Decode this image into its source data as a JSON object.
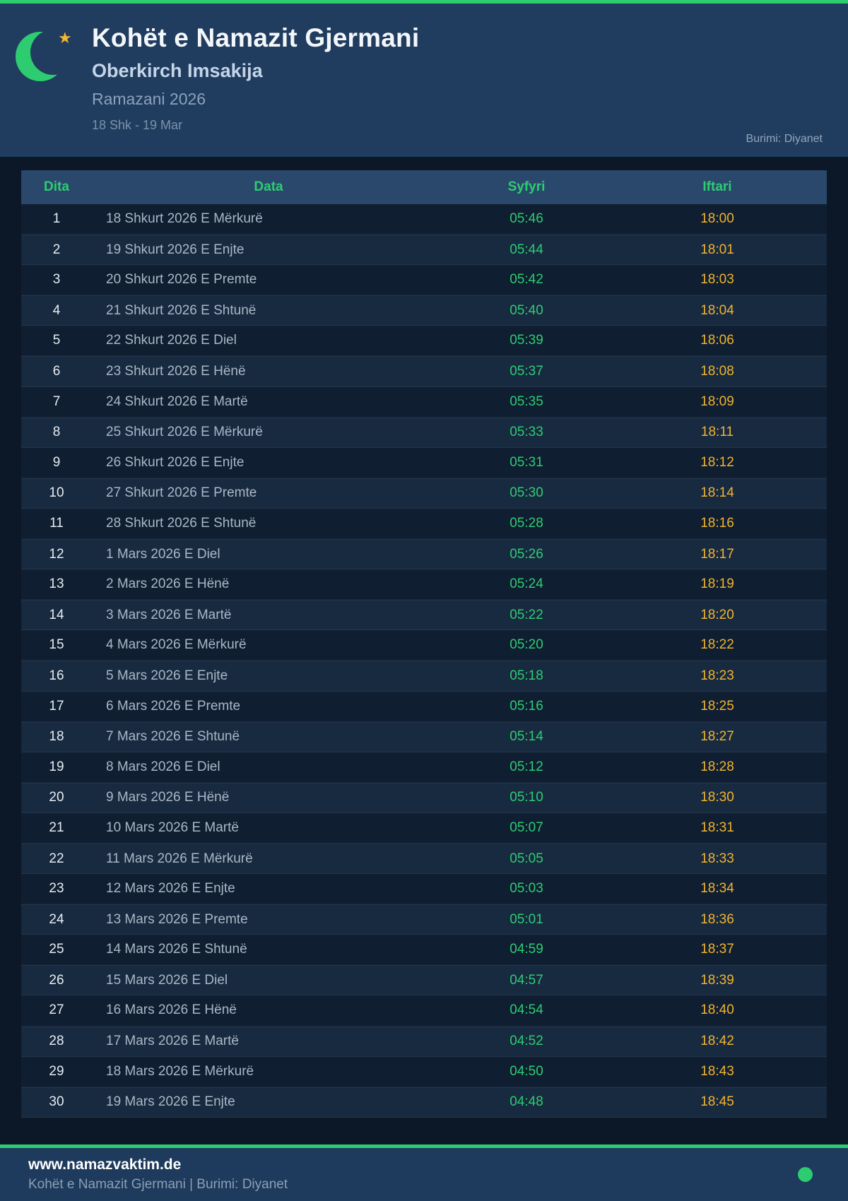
{
  "colors": {
    "accent_green": "#2ecc71",
    "iftar_orange": "#f0b42f",
    "header_band": "#203c5f",
    "page_background": "#0c1827",
    "table_header": "#29486c"
  },
  "icons": {
    "logo": "crescent-moon-icon",
    "logo_star": "star-icon",
    "footer_dot": "green-dot-icon"
  },
  "header": {
    "title": "Kohët e Namazit Gjermani",
    "subtitle": "Oberkirch Imsakija",
    "season": "Ramazani 2026",
    "date_range": "18 Shk - 19 Mar",
    "source": "Burimi: Diyanet"
  },
  "table": {
    "columns": [
      "Dita",
      "Data",
      "Syfyri",
      "Iftari"
    ],
    "rows": [
      {
        "dita": "1",
        "data": "18 Shkurt 2026 E Mërkurë",
        "syfyri": "05:46",
        "iftari": "18:00"
      },
      {
        "dita": "2",
        "data": "19 Shkurt 2026 E Enjte",
        "syfyri": "05:44",
        "iftari": "18:01"
      },
      {
        "dita": "3",
        "data": "20 Shkurt 2026 E Premte",
        "syfyri": "05:42",
        "iftari": "18:03"
      },
      {
        "dita": "4",
        "data": "21 Shkurt 2026 E Shtunë",
        "syfyri": "05:40",
        "iftari": "18:04"
      },
      {
        "dita": "5",
        "data": "22 Shkurt 2026 E Diel",
        "syfyri": "05:39",
        "iftari": "18:06"
      },
      {
        "dita": "6",
        "data": "23 Shkurt 2026 E Hënë",
        "syfyri": "05:37",
        "iftari": "18:08"
      },
      {
        "dita": "7",
        "data": "24 Shkurt 2026 E Martë",
        "syfyri": "05:35",
        "iftari": "18:09"
      },
      {
        "dita": "8",
        "data": "25 Shkurt 2026 E Mërkurë",
        "syfyri": "05:33",
        "iftari": "18:11"
      },
      {
        "dita": "9",
        "data": "26 Shkurt 2026 E Enjte",
        "syfyri": "05:31",
        "iftari": "18:12"
      },
      {
        "dita": "10",
        "data": "27 Shkurt 2026 E Premte",
        "syfyri": "05:30",
        "iftari": "18:14"
      },
      {
        "dita": "11",
        "data": "28 Shkurt 2026 E Shtunë",
        "syfyri": "05:28",
        "iftari": "18:16"
      },
      {
        "dita": "12",
        "data": "1 Mars 2026 E Diel",
        "syfyri": "05:26",
        "iftari": "18:17"
      },
      {
        "dita": "13",
        "data": "2 Mars 2026 E Hënë",
        "syfyri": "05:24",
        "iftari": "18:19"
      },
      {
        "dita": "14",
        "data": "3 Mars 2026 E Martë",
        "syfyri": "05:22",
        "iftari": "18:20"
      },
      {
        "dita": "15",
        "data": "4 Mars 2026 E Mërkurë",
        "syfyri": "05:20",
        "iftari": "18:22"
      },
      {
        "dita": "16",
        "data": "5 Mars 2026 E Enjte",
        "syfyri": "05:18",
        "iftari": "18:23"
      },
      {
        "dita": "17",
        "data": "6 Mars 2026 E Premte",
        "syfyri": "05:16",
        "iftari": "18:25"
      },
      {
        "dita": "18",
        "data": "7 Mars 2026 E Shtunë",
        "syfyri": "05:14",
        "iftari": "18:27"
      },
      {
        "dita": "19",
        "data": "8 Mars 2026 E Diel",
        "syfyri": "05:12",
        "iftari": "18:28"
      },
      {
        "dita": "20",
        "data": "9 Mars 2026 E Hënë",
        "syfyri": "05:10",
        "iftari": "18:30"
      },
      {
        "dita": "21",
        "data": "10 Mars 2026 E Martë",
        "syfyri": "05:07",
        "iftari": "18:31"
      },
      {
        "dita": "22",
        "data": "11 Mars 2026 E Mërkurë",
        "syfyri": "05:05",
        "iftari": "18:33"
      },
      {
        "dita": "23",
        "data": "12 Mars 2026 E Enjte",
        "syfyri": "05:03",
        "iftari": "18:34"
      },
      {
        "dita": "24",
        "data": "13 Mars 2026 E Premte",
        "syfyri": "05:01",
        "iftari": "18:36"
      },
      {
        "dita": "25",
        "data": "14 Mars 2026 E Shtunë",
        "syfyri": "04:59",
        "iftari": "18:37"
      },
      {
        "dita": "26",
        "data": "15 Mars 2026 E Diel",
        "syfyri": "04:57",
        "iftari": "18:39"
      },
      {
        "dita": "27",
        "data": "16 Mars 2026 E Hënë",
        "syfyri": "04:54",
        "iftari": "18:40"
      },
      {
        "dita": "28",
        "data": "17 Mars 2026 E Martë",
        "syfyri": "04:52",
        "iftari": "18:42"
      },
      {
        "dita": "29",
        "data": "18 Mars 2026 E Mërkurë",
        "syfyri": "04:50",
        "iftari": "18:43"
      },
      {
        "dita": "30",
        "data": "19 Mars 2026 E Enjte",
        "syfyri": "04:48",
        "iftari": "18:45"
      }
    ]
  },
  "footer": {
    "site": "www.namazvaktim.de",
    "tagline": "Kohët e Namazit Gjermani | Burimi: Diyanet"
  }
}
